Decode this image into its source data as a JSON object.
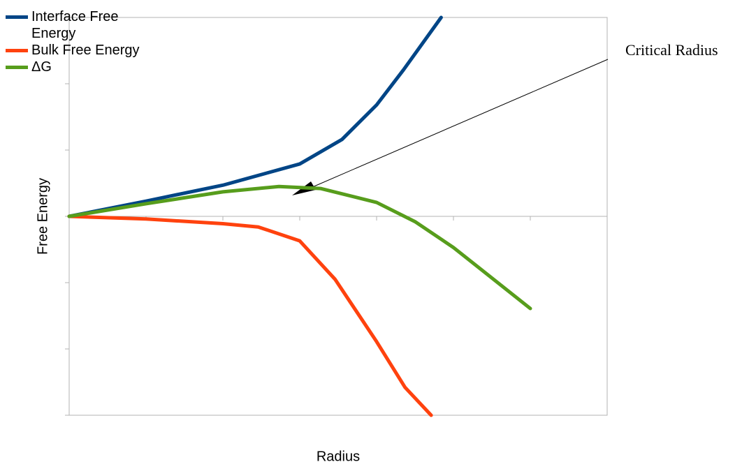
{
  "chart_data": {
    "type": "line",
    "y_label": "Free Energy",
    "x_label": "Radius",
    "annotation": "Critical Radius",
    "xlim": [
      0,
      7
    ],
    "xticks": [
      0,
      1,
      2,
      3,
      4,
      5,
      6,
      7
    ],
    "ylim": [
      -3,
      3
    ],
    "yticks": [
      -3,
      -2,
      -1,
      0,
      1,
      2,
      3
    ],
    "series": [
      {
        "name": "Interface Free Energy",
        "color": "#004586",
        "x": [
          0,
          1,
          2,
          3,
          3.55,
          4,
          4.35,
          4.84
        ],
        "values": [
          0,
          0.23,
          0.47,
          0.79,
          1.16,
          1.68,
          2.21,
          3.0
        ]
      },
      {
        "name": "Bulk Free Energy",
        "color": "#ff420e",
        "x": [
          0,
          1,
          2,
          2.46,
          3,
          3.46,
          4,
          4.37,
          4.71
        ],
        "values": [
          0,
          -0.04,
          -0.11,
          -0.16,
          -0.37,
          -0.95,
          -1.89,
          -2.58,
          -3.0
        ]
      },
      {
        "name": "ΔG",
        "color": "#579d1c",
        "x": [
          0,
          1,
          2,
          2.73,
          3.27,
          4,
          4.5,
          5,
          6
        ],
        "values": [
          0,
          0.19,
          0.37,
          0.45,
          0.42,
          0.21,
          -0.08,
          -0.47,
          -1.39
        ]
      }
    ]
  }
}
